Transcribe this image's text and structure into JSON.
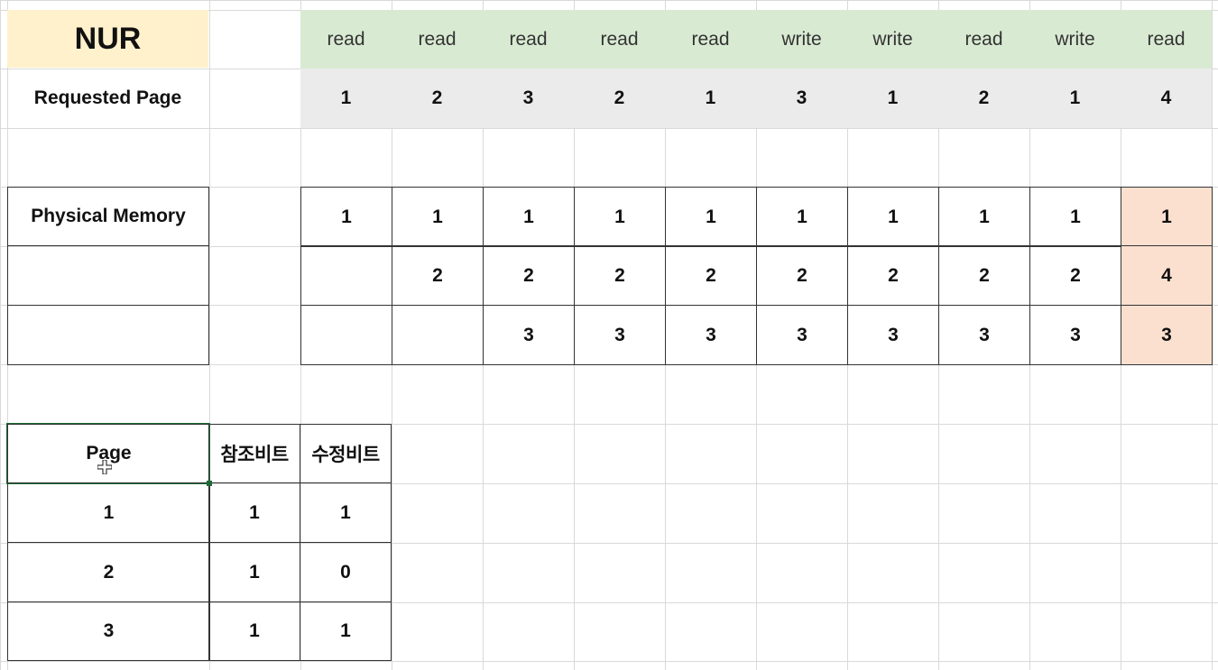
{
  "title": "NUR",
  "requested_page_label": "Requested Page",
  "physical_memory_label": "Physical Memory",
  "operations": [
    "read",
    "read",
    "read",
    "read",
    "read",
    "write",
    "write",
    "read",
    "write",
    "read"
  ],
  "requested_pages": [
    "1",
    "2",
    "3",
    "2",
    "1",
    "3",
    "1",
    "2",
    "1",
    "4"
  ],
  "memory_frames": [
    [
      "1",
      "1",
      "1",
      "1",
      "1",
      "1",
      "1",
      "1",
      "1",
      "1"
    ],
    [
      "",
      "2",
      "2",
      "2",
      "2",
      "2",
      "2",
      "2",
      "2",
      "4"
    ],
    [
      "",
      "",
      "3",
      "3",
      "3",
      "3",
      "3",
      "3",
      "3",
      "3"
    ]
  ],
  "bit_table": {
    "headers": [
      "Page",
      "참조비트",
      "수정비트"
    ],
    "rows": [
      [
        "1",
        "1",
        "1"
      ],
      [
        "2",
        "1",
        "0"
      ],
      [
        "3",
        "1",
        "1"
      ]
    ]
  },
  "colors": {
    "title_fill": "#fff1cc",
    "ops_fill": "#d9ead3",
    "pages_fill": "#ebebeb",
    "replaced_column_fill": "#fce0cf",
    "gridline": "#d9d9d9",
    "selection": "#1d6b34"
  },
  "icons": {
    "cursor": "cell-select-cursor-icon"
  }
}
